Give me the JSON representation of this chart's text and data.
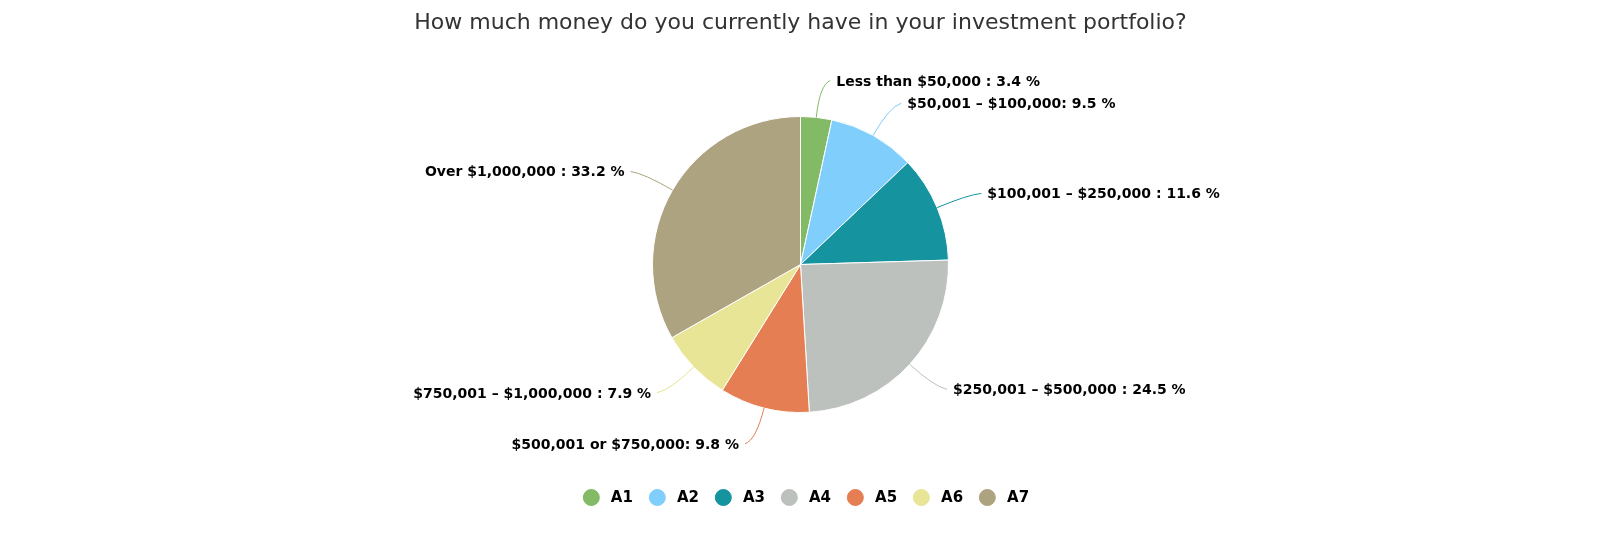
{
  "chart_data": {
    "type": "pie",
    "title": "How much money do you currently have in your investment portfolio?",
    "categories": [
      "A1",
      "A2",
      "A3",
      "A4",
      "A5",
      "A6",
      "A7"
    ],
    "values": [
      3.4,
      9.5,
      11.6,
      24.5,
      9.8,
      7.9,
      33.2
    ],
    "colors": [
      "#83ba65",
      "#7fcefc",
      "#1594a0",
      "#bdc1bd",
      "#e57e53",
      "#e8e597",
      "#aea380"
    ],
    "value_labels": [
      "Less than $50,000 : 3.4 %",
      "$50,001 – $100,000: 9.5 %",
      "$100,001 – $250,000 : 11.6 %",
      "$250,001 – $500,000 : 24.5 %",
      "$500,001 or $750,000: 9.8 %",
      "$750,001 – $1,000,000 : 7.9 %",
      "Over $1,000,000 : 33.2 %"
    ],
    "legend": "bottom"
  }
}
